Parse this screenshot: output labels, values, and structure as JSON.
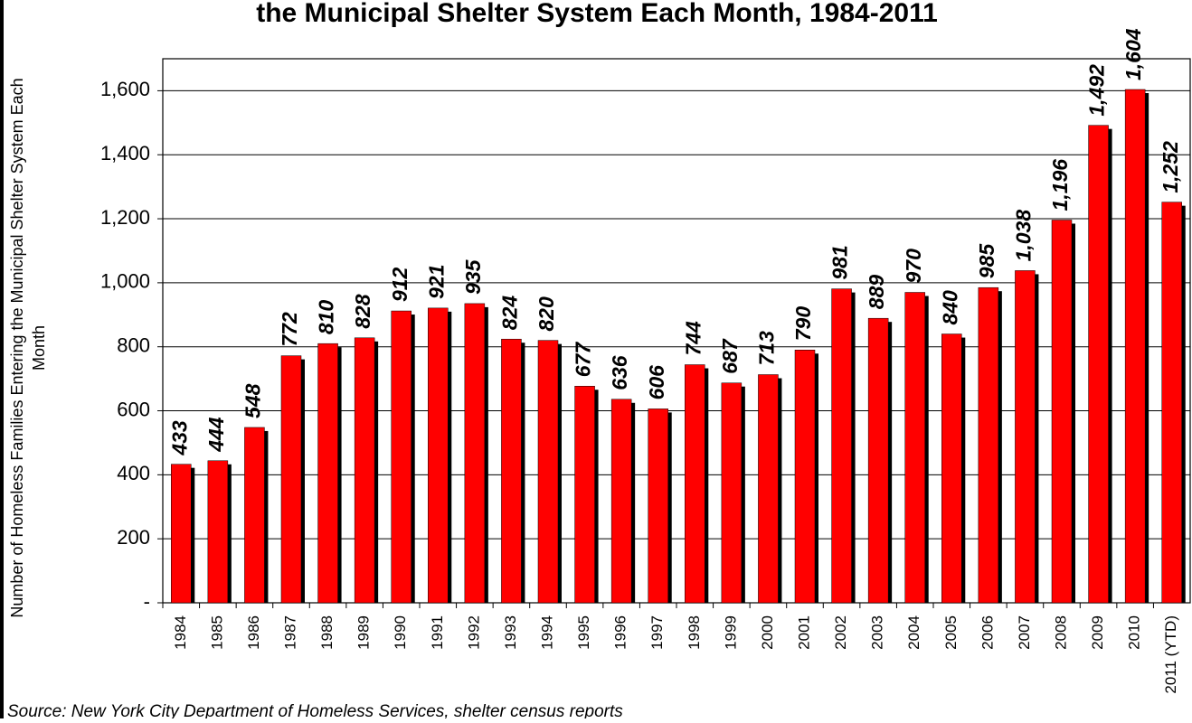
{
  "chart_data": {
    "type": "bar",
    "title": "the Municipal Shelter System Each Month, 1984-2011",
    "y_label": [
      "Number of Homeless Families Entering the Municipal Shelter System Each",
      "Month"
    ],
    "source": "Source:  New York City Department of Homeless Services, shelter census reports",
    "categories": [
      "1984",
      "1985",
      "1986",
      "1987",
      "1988",
      "1989",
      "1990",
      "1991",
      "1992",
      "1993",
      "1994",
      "1995",
      "1996",
      "1997",
      "1998",
      "1999",
      "2000",
      "2001",
      "2002",
      "2003",
      "2004",
      "2005",
      "2006",
      "2007",
      "2008",
      "2009",
      "2010",
      "2011 (YTD)"
    ],
    "values": [
      433,
      444,
      548,
      772,
      810,
      828,
      912,
      921,
      935,
      824,
      820,
      677,
      636,
      606,
      744,
      687,
      713,
      790,
      981,
      889,
      970,
      840,
      985,
      1038,
      1196,
      1492,
      1604,
      1252
    ],
    "value_labels": [
      "433",
      "444",
      "548",
      "772",
      "810",
      "828",
      "912",
      "921",
      "935",
      "824",
      "820",
      "677",
      "636",
      "606",
      "744",
      "687",
      "713",
      "790",
      "981",
      "889",
      "970",
      "840",
      "985",
      "1,038",
      "1,196",
      "1,492",
      "1,604",
      "1,252"
    ],
    "color": "#ff0000",
    "shadow_color": "#000000",
    "ylim": [
      0,
      1700
    ],
    "yticks": [
      {
        "value": 0,
        "label": "-"
      },
      200,
      400,
      600,
      800,
      {
        "value": 1000,
        "label": "1,000"
      },
      {
        "value": 1200,
        "label": "1,200"
      },
      {
        "value": 1400,
        "label": "1,400"
      },
      {
        "value": 1600,
        "label": "1,600"
      }
    ],
    "grid": true
  }
}
